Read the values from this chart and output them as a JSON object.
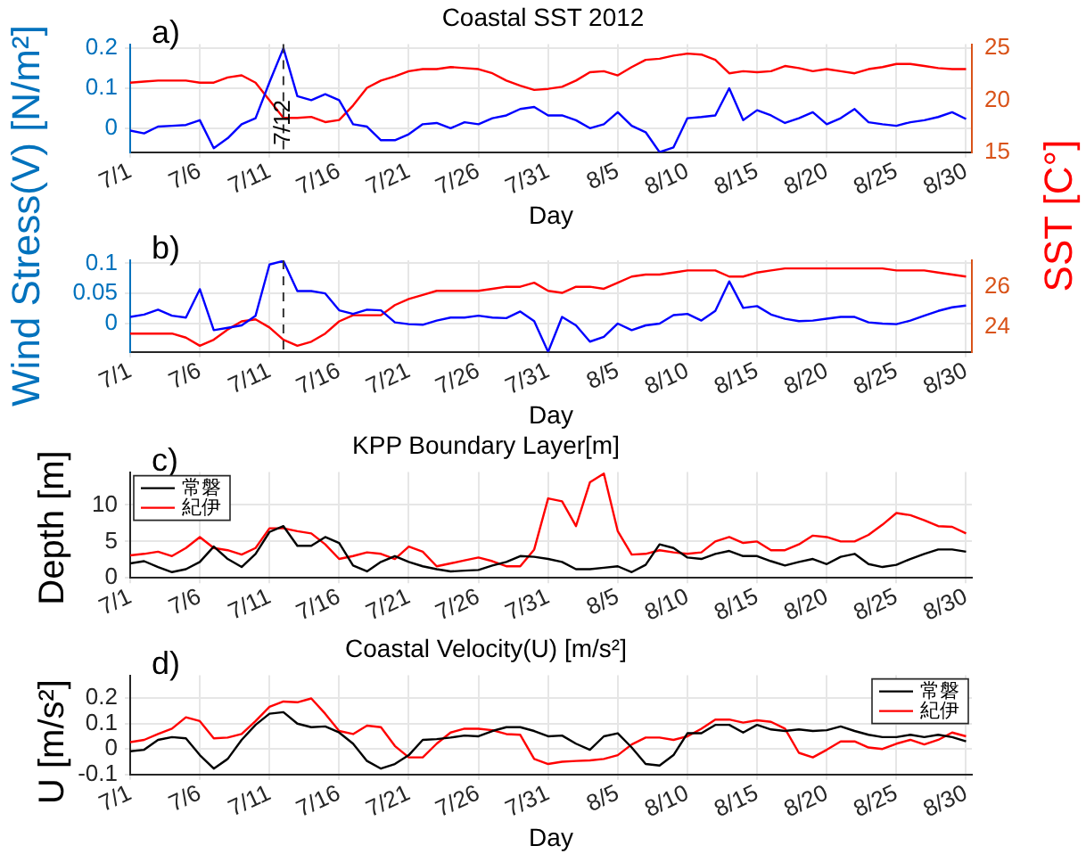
{
  "chart_data": [
    {
      "type": "line",
      "title": "Coastal SST 2012",
      "xlabel": "Day",
      "ylabel": "Wind Stress(V) [N/m²]",
      "y2label": "SST [C°]",
      "annotations": [
        "a)"
      ],
      "x": [
        "--07-01",
        "--07-02",
        "--07-03",
        "--07-04",
        "--07-05",
        "--07-06",
        "--07-07",
        "--07-08",
        "--07-09",
        "--07-10",
        "--07-11",
        "--07-12",
        "--07-13",
        "--07-14",
        "--07-15",
        "--07-16",
        "--07-17",
        "--07-18",
        "--07-19",
        "--07-20",
        "--07-21",
        "--07-22",
        "--07-23",
        "--07-24",
        "--07-25",
        "--07-26",
        "--07-27",
        "--07-28",
        "--07-29",
        "--07-30",
        "--07-31",
        "--08-01",
        "--08-02",
        "--08-03",
        "--08-04",
        "--08-05",
        "--08-06",
        "--08-07",
        "--08-08",
        "--08-09",
        "--08-10",
        "--08-11",
        "--08-12",
        "--08-13",
        "--08-14",
        "--08-15",
        "--08-16",
        "--08-17",
        "--08-18",
        "--08-19",
        "--08-20",
        "--08-21",
        "--08-22",
        "--08-23",
        "--08-24",
        "--08-25",
        "--08-26",
        "--08-27",
        "--08-28",
        "--08-29",
        "--08-30"
      ],
      "xlim": [
        "--07-01",
        "--08-30T10:00"
      ],
      "xticks": [
        {
          "value": "--07-01",
          "label": "7/1"
        },
        {
          "value": "--07-06",
          "label": "7/6"
        },
        {
          "value": "--07-11",
          "label": "7/11"
        },
        {
          "value": "--07-16",
          "label": "7/16"
        },
        {
          "value": "--07-21",
          "label": "7/21"
        },
        {
          "value": "--07-26",
          "label": "7/26"
        },
        {
          "value": "--07-31",
          "label": "7/31"
        },
        {
          "value": "--08-05",
          "label": "8/5"
        },
        {
          "value": "--08-10",
          "label": "8/10"
        },
        {
          "value": "--08-15",
          "label": "8/15"
        },
        {
          "value": "--08-20",
          "label": "8/20"
        },
        {
          "value": "--08-25",
          "label": "8/25"
        },
        {
          "value": "--08-30",
          "label": "8/30"
        }
      ],
      "ylim": [
        -0.06,
        0.21
      ],
      "yticks": [
        0,
        0.1,
        0.2
      ],
      "y2lim": [
        15,
        25.4
      ],
      "y2ticks": [
        15,
        20,
        25
      ],
      "series": [
        {
          "color": "#0000ff",
          "values": [
            -0.006,
            -0.013,
            0.004,
            0.006,
            0.008,
            0.02,
            -0.05,
            -0.025,
            0.01,
            0.025,
            0.115,
            0.2,
            0.08,
            0.07,
            0.085,
            0.07,
            0.01,
            0.004,
            -0.03,
            -0.03,
            -0.015,
            0.01,
            0.013,
            0,
            0.015,
            0.01,
            0.025,
            0.032,
            0.048,
            0.053,
            0.032,
            0.032,
            0.02,
            0,
            0.01,
            0.04,
            0.006,
            -0.01,
            -0.06,
            -0.048,
            0.025,
            0.028,
            0.032,
            0.1,
            0.02,
            0.045,
            0.032,
            0.013,
            0.025,
            0.04,
            0.01,
            0.025,
            0.048,
            0.015,
            0.01,
            0.006,
            0.015,
            0.02,
            0.028,
            0.04,
            0.023
          ]
        },
        {
          "color": "#ff0000",
          "axis": "y2",
          "values": [
            21.7,
            21.8,
            21.9,
            21.9,
            21.9,
            21.7,
            21.7,
            22.2,
            22.4,
            21.7,
            20,
            18.3,
            18.3,
            18.4,
            17.9,
            18.1,
            19.5,
            21.2,
            21.9,
            22.3,
            22.8,
            23,
            23,
            23.2,
            23.1,
            23,
            22.6,
            21.9,
            21.4,
            21,
            21.1,
            21.3,
            21.9,
            22.7,
            22.8,
            22.4,
            23.2,
            23.9,
            24,
            24.3,
            24.5,
            24.4,
            23.9,
            22.6,
            22.8,
            22.7,
            22.8,
            23.3,
            23.1,
            22.8,
            23,
            22.8,
            22.6,
            23,
            23.2,
            23.5,
            23.5,
            23.3,
            23.1,
            23,
            23
          ]
        }
      ],
      "ref_lines": [
        {
          "axis": "x",
          "value": "--07-12",
          "label": "7/12",
          "line_style": "dashed"
        }
      ],
      "grid": true,
      "legend": false,
      "marker": "none"
    },
    {
      "type": "line",
      "xlabel": "Day",
      "annotations": [
        "b)"
      ],
      "x": [
        "--07-01",
        "--07-02",
        "--07-03",
        "--07-04",
        "--07-05",
        "--07-06",
        "--07-07",
        "--07-08",
        "--07-09",
        "--07-10",
        "--07-11",
        "--07-12",
        "--07-13",
        "--07-14",
        "--07-15",
        "--07-16",
        "--07-17",
        "--07-18",
        "--07-19",
        "--07-20",
        "--07-21",
        "--07-22",
        "--07-23",
        "--07-24",
        "--07-25",
        "--07-26",
        "--07-27",
        "--07-28",
        "--07-29",
        "--07-30",
        "--07-31",
        "--08-01",
        "--08-02",
        "--08-03",
        "--08-04",
        "--08-05",
        "--08-06",
        "--08-07",
        "--08-08",
        "--08-09",
        "--08-10",
        "--08-11",
        "--08-12",
        "--08-13",
        "--08-14",
        "--08-15",
        "--08-16",
        "--08-17",
        "--08-18",
        "--08-19",
        "--08-20",
        "--08-21",
        "--08-22",
        "--08-23",
        "--08-24",
        "--08-25",
        "--08-26",
        "--08-27",
        "--08-28",
        "--08-29",
        "--08-30"
      ],
      "xlim": [
        "--07-01",
        "--08-30T10:00"
      ],
      "xticks": [
        {
          "value": "--07-01",
          "label": "7/1"
        },
        {
          "value": "--07-06",
          "label": "7/6"
        },
        {
          "value": "--07-11",
          "label": "7/11"
        },
        {
          "value": "--07-16",
          "label": "7/16"
        },
        {
          "value": "--07-21",
          "label": "7/21"
        },
        {
          "value": "--07-26",
          "label": "7/26"
        },
        {
          "value": "--07-31",
          "label": "7/31"
        },
        {
          "value": "--08-05",
          "label": "8/5"
        },
        {
          "value": "--08-10",
          "label": "8/10"
        },
        {
          "value": "--08-15",
          "label": "8/15"
        },
        {
          "value": "--08-20",
          "label": "8/20"
        },
        {
          "value": "--08-25",
          "label": "8/25"
        },
        {
          "value": "--08-30",
          "label": "8/30"
        }
      ],
      "ylim": [
        -0.047,
        0.105
      ],
      "yticks": [
        0,
        0.05,
        0.1
      ],
      "y2lim": [
        22.8,
        27.3
      ],
      "y2ticks": [
        24,
        26
      ],
      "series": [
        {
          "color": "#0000ff",
          "values": [
            0.011,
            0.015,
            0.023,
            0.013,
            0.01,
            0.057,
            -0.011,
            -0.007,
            -0.003,
            0.013,
            0.098,
            0.104,
            0.054,
            0.054,
            0.05,
            0.022,
            0.016,
            0.023,
            0.022,
            0.002,
            -0.001,
            -0.002,
            0.005,
            0.01,
            0.01,
            0.013,
            0.01,
            0.009,
            0.02,
            0.004,
            -0.047,
            0.011,
            -0.003,
            -0.03,
            -0.022,
            0,
            -0.011,
            -0.003,
            0,
            0.014,
            0.016,
            0.005,
            0.021,
            0.07,
            0.026,
            0.029,
            0.015,
            0.008,
            0.004,
            0.005,
            0.008,
            0.011,
            0.011,
            0.002,
            0,
            -0.001,
            0.005,
            0.013,
            0.021,
            0.027,
            0.03
          ]
        },
        {
          "color": "#ff0000",
          "axis": "y2",
          "values": [
            23.7,
            23.7,
            23.7,
            23.7,
            23.5,
            23.1,
            23.4,
            23.9,
            24.3,
            24.4,
            24,
            23.4,
            23.1,
            23.3,
            23.7,
            24.3,
            24.6,
            24.6,
            24.6,
            25.1,
            25.4,
            25.6,
            25.8,
            25.8,
            25.8,
            25.8,
            25.9,
            26,
            26,
            26.2,
            25.8,
            25.7,
            26,
            26,
            25.9,
            26.2,
            26.5,
            26.6,
            26.6,
            26.7,
            26.8,
            26.8,
            26.8,
            26.5,
            26.5,
            26.7,
            26.8,
            26.9,
            26.9,
            26.9,
            26.9,
            26.9,
            26.9,
            26.9,
            26.9,
            26.8,
            26.8,
            26.8,
            26.7,
            26.6,
            26.5
          ]
        }
      ],
      "ref_lines": [
        {
          "axis": "x",
          "value": "--07-12",
          "line_style": "dashed"
        }
      ],
      "grid": true,
      "legend": false,
      "marker": "none"
    },
    {
      "type": "line",
      "title": "KPP Boundary Layer[m]",
      "ylabel": "Depth [m]",
      "annotations": [
        "c)"
      ],
      "x": [
        "--07-01",
        "--07-02",
        "--07-03",
        "--07-04",
        "--07-05",
        "--07-06",
        "--07-07",
        "--07-08",
        "--07-09",
        "--07-10",
        "--07-11",
        "--07-12",
        "--07-13",
        "--07-14",
        "--07-15",
        "--07-16",
        "--07-17",
        "--07-18",
        "--07-19",
        "--07-20",
        "--07-21",
        "--07-22",
        "--07-23",
        "--07-24",
        "--07-25",
        "--07-26",
        "--07-27",
        "--07-28",
        "--07-29",
        "--07-30",
        "--07-31",
        "--08-01",
        "--08-02",
        "--08-03",
        "--08-04",
        "--08-05",
        "--08-06",
        "--08-07",
        "--08-08",
        "--08-09",
        "--08-10",
        "--08-11",
        "--08-12",
        "--08-13",
        "--08-14",
        "--08-15",
        "--08-16",
        "--08-17",
        "--08-18",
        "--08-19",
        "--08-20",
        "--08-21",
        "--08-22",
        "--08-23",
        "--08-24",
        "--08-25",
        "--08-26",
        "--08-27",
        "--08-28",
        "--08-29",
        "--08-30"
      ],
      "xlim": [
        "--07-01",
        "--08-30T10:00"
      ],
      "xticks": [
        {
          "value": "--07-01",
          "label": "7/1"
        },
        {
          "value": "--07-06",
          "label": "7/6"
        },
        {
          "value": "--07-11",
          "label": "7/11"
        },
        {
          "value": "--07-16",
          "label": "7/16"
        },
        {
          "value": "--07-21",
          "label": "7/21"
        },
        {
          "value": "--07-26",
          "label": "7/26"
        },
        {
          "value": "--07-31",
          "label": "7/31"
        },
        {
          "value": "--08-05",
          "label": "8/5"
        },
        {
          "value": "--08-10",
          "label": "8/10"
        },
        {
          "value": "--08-15",
          "label": "8/15"
        },
        {
          "value": "--08-20",
          "label": "8/20"
        },
        {
          "value": "--08-25",
          "label": "8/25"
        },
        {
          "value": "--08-30",
          "label": "8/30"
        }
      ],
      "ylim": [
        0,
        14.5
      ],
      "yticks": [
        0,
        5,
        10
      ],
      "series": [
        {
          "name": "常磐",
          "color": "#000000",
          "values": [
            2,
            2.3,
            1.5,
            0.8,
            1.2,
            2.2,
            4.3,
            2.6,
            1.5,
            3.3,
            6.3,
            7.1,
            4.4,
            4.4,
            5.6,
            4.8,
            1.7,
            0.9,
            2.2,
            3,
            2.2,
            1.6,
            1.2,
            0.9,
            1,
            1.1,
            1.7,
            2.2,
            3,
            2.9,
            2.6,
            2.2,
            1.2,
            1.2,
            1.4,
            1.6,
            0.8,
            1.8,
            4.6,
            4.1,
            2.8,
            2.6,
            3.3,
            3.7,
            3,
            3,
            2.3,
            1.7,
            2.2,
            2.6,
            1.9,
            2.9,
            3.3,
            1.9,
            1.5,
            1.8,
            2.6,
            3.3,
            3.9,
            3.9,
            3.6
          ]
        },
        {
          "name": "紀伊",
          "color": "#ff0000",
          "values": [
            3.1,
            3.3,
            3.6,
            3,
            4.1,
            5.6,
            4.1,
            3.8,
            3.2,
            4.1,
            6.8,
            6.8,
            6.4,
            6.1,
            4.6,
            2.6,
            3,
            3.5,
            3.3,
            2.6,
            4.3,
            3.6,
            1.6,
            2,
            2.4,
            2.8,
            2.3,
            1.6,
            1.6,
            3.9,
            10.9,
            10.5,
            7.1,
            13.1,
            14.3,
            6.4,
            3.2,
            3.3,
            3.8,
            3.5,
            3.3,
            3.5,
            5,
            5.6,
            4.8,
            5,
            3.8,
            3.8,
            4.6,
            5.8,
            5.6,
            5,
            5,
            5.9,
            7.3,
            8.9,
            8.6,
            7.9,
            7.1,
            7,
            6.1
          ]
        }
      ],
      "grid": true,
      "legend": "top left",
      "marker": "none"
    },
    {
      "type": "line",
      "title": "Coastal Velocity(U) [m/s²]",
      "xlabel": "Day",
      "ylabel": "U [m/s²]",
      "annotations": [
        "d)"
      ],
      "x": [
        "--07-01",
        "--07-02",
        "--07-03",
        "--07-04",
        "--07-05",
        "--07-06",
        "--07-07",
        "--07-08",
        "--07-09",
        "--07-10",
        "--07-11",
        "--07-12",
        "--07-13",
        "--07-14",
        "--07-15",
        "--07-16",
        "--07-17",
        "--07-18",
        "--07-19",
        "--07-20",
        "--07-21",
        "--07-22",
        "--07-23",
        "--07-24",
        "--07-25",
        "--07-26",
        "--07-27",
        "--07-28",
        "--07-29",
        "--07-30",
        "--07-31",
        "--08-01",
        "--08-02",
        "--08-03",
        "--08-04",
        "--08-05",
        "--08-06",
        "--08-07",
        "--08-08",
        "--08-09",
        "--08-10",
        "--08-11",
        "--08-12",
        "--08-13",
        "--08-14",
        "--08-15",
        "--08-16",
        "--08-17",
        "--08-18",
        "--08-19",
        "--08-20",
        "--08-21",
        "--08-22",
        "--08-23",
        "--08-24",
        "--08-25",
        "--08-26",
        "--08-27",
        "--08-28",
        "--08-29",
        "--08-30"
      ],
      "xlim": [
        "--07-01",
        "--08-30T10:00"
      ],
      "xticks": [
        {
          "value": "--07-01",
          "label": "7/1"
        },
        {
          "value": "--07-06",
          "label": "7/6"
        },
        {
          "value": "--07-11",
          "label": "7/11"
        },
        {
          "value": "--07-16",
          "label": "7/16"
        },
        {
          "value": "--07-21",
          "label": "7/21"
        },
        {
          "value": "--07-26",
          "label": "7/26"
        },
        {
          "value": "--07-31",
          "label": "7/31"
        },
        {
          "value": "--08-05",
          "label": "8/5"
        },
        {
          "value": "--08-10",
          "label": "8/10"
        },
        {
          "value": "--08-15",
          "label": "8/15"
        },
        {
          "value": "--08-20",
          "label": "8/20"
        },
        {
          "value": "--08-25",
          "label": "8/25"
        },
        {
          "value": "--08-30",
          "label": "8/30"
        }
      ],
      "ylim": [
        -0.1,
        0.29
      ],
      "yticks": [
        -0.1,
        0,
        0.1,
        0.2
      ],
      "series": [
        {
          "name": "常磐",
          "color": "#000000",
          "values": [
            -0.009,
            -0.003,
            0.036,
            0.047,
            0.042,
            -0.024,
            -0.077,
            -0.039,
            0.036,
            0.095,
            0.139,
            0.145,
            0.1,
            0.086,
            0.089,
            0.065,
            0.021,
            -0.047,
            -0.077,
            -0.059,
            -0.024,
            0.036,
            0.039,
            0.045,
            0.053,
            0.05,
            0.071,
            0.086,
            0.086,
            0.071,
            0.05,
            0.053,
            0.021,
            -0.003,
            0.05,
            0.062,
            0.006,
            -0.059,
            -0.065,
            -0.024,
            0.062,
            0.062,
            0.095,
            0.095,
            0.065,
            0.095,
            0.077,
            0.071,
            0.077,
            0.071,
            0.074,
            0.089,
            0.071,
            0.056,
            0.047,
            0.047,
            0.056,
            0.047,
            0.056,
            0.047,
            0.03
          ]
        },
        {
          "name": "紀伊",
          "color": "#ff0000",
          "values": [
            0.027,
            0.036,
            0.059,
            0.08,
            0.125,
            0.11,
            0.042,
            0.045,
            0.059,
            0.11,
            0.166,
            0.187,
            0.184,
            0.199,
            0.139,
            0.071,
            0.059,
            0.092,
            0.086,
            0.012,
            -0.033,
            -0.033,
            0.021,
            0.065,
            0.08,
            0.08,
            0.074,
            0.059,
            0.056,
            -0.039,
            -0.059,
            -0.05,
            -0.047,
            -0.045,
            -0.039,
            -0.024,
            0.018,
            0.045,
            0.045,
            0.036,
            0.05,
            0.08,
            0.116,
            0.116,
            0.104,
            0.113,
            0.107,
            0.08,
            -0.015,
            -0.033,
            -0.003,
            0.03,
            0.03,
            0.006,
            0,
            0.021,
            0.036,
            0.018,
            0.036,
            0.065,
            0.05
          ]
        }
      ],
      "grid": true,
      "legend": "top right",
      "marker": "none"
    }
  ]
}
